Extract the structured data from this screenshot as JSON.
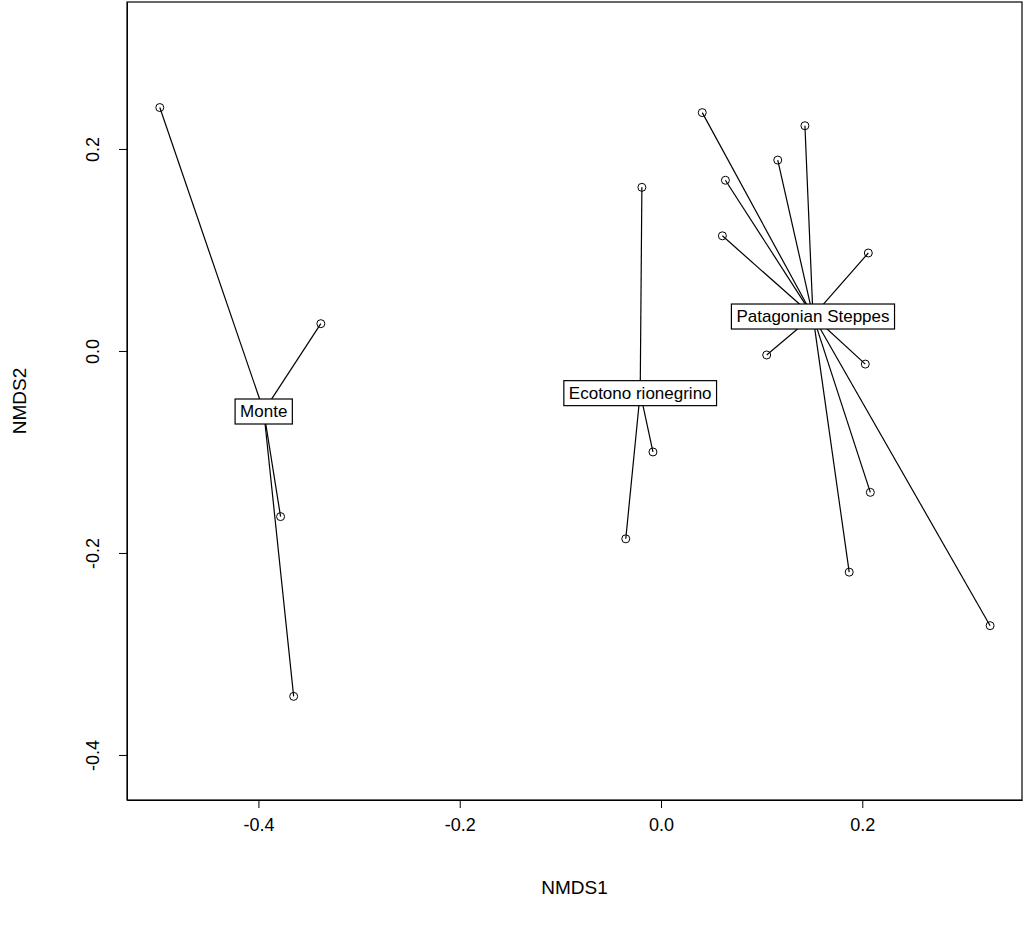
{
  "chart_data": {
    "type": "scatter",
    "x_label": "NMDS1",
    "y_label": "NMDS2",
    "xlim": [
      -0.5306,
      0.3587
    ],
    "ylim": [
      -0.4446,
      0.3455
    ],
    "xticks": [
      -0.4,
      -0.2,
      {
        "value": 0,
        "label": "0.0"
      },
      0.2
    ],
    "yticks": [
      -0.4,
      -0.2,
      {
        "value": 0,
        "label": "0.0"
      },
      0.2
    ],
    "color": "#000000",
    "marker": "circle",
    "series": [
      {
        "name": "Monte",
        "x": [
          -0.498,
          -0.338,
          -0.378,
          -0.365
        ],
        "values": [
          0.241,
          0.027,
          -0.164,
          -0.342
        ]
      },
      {
        "name": "Ecotono rionegrino",
        "x": [
          -0.019,
          -0.008,
          -0.035
        ],
        "values": [
          0.162,
          -0.1,
          -0.186
        ]
      },
      {
        "name": "Patagonian Steppes",
        "x": [
          0.041,
          0.143,
          0.116,
          0.064,
          0.061,
          0.206,
          0.105,
          0.203,
          0.208,
          0.187,
          0.327
        ],
        "values": [
          0.236,
          0.223,
          0.189,
          0.169,
          0.114,
          0.097,
          -0.004,
          -0.013,
          -0.14,
          -0.219,
          -0.272
        ]
      }
    ]
  }
}
